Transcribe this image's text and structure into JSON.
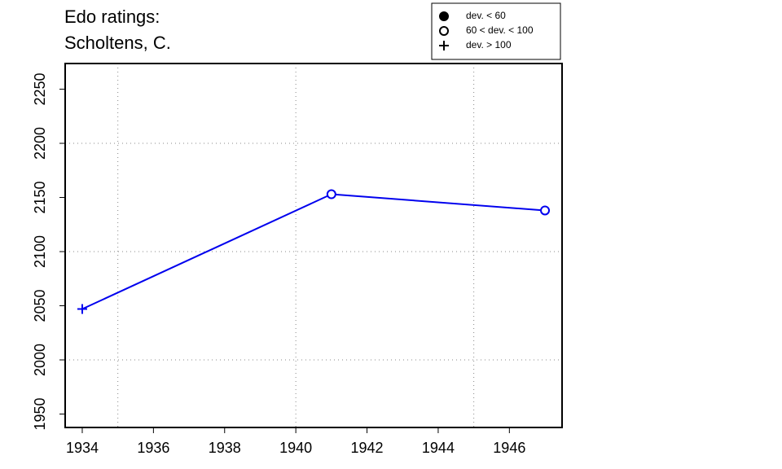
{
  "chart_data": {
    "type": "line",
    "title": [
      "Edo ratings:",
      "Scholtens, C."
    ],
    "x": [
      1934,
      1941,
      1947
    ],
    "series": [
      {
        "color": "#0000ee",
        "values": [
          2047,
          2153,
          2138
        ],
        "markers": [
          "plus",
          "circle",
          "circle"
        ]
      }
    ],
    "xlim": [
      1933.52,
      1947.48
    ],
    "xticks": [
      1934,
      1936,
      1938,
      1940,
      1942,
      1944,
      1946
    ],
    "ylim": [
      1937.6,
      2273.7
    ],
    "yticks": [
      1950,
      2000,
      2050,
      2100,
      2150,
      2200,
      2250
    ],
    "xgrid": [
      1935,
      1940,
      1945
    ],
    "ygrid": [
      2000,
      2100,
      2200
    ],
    "legend": {
      "position": "top-right",
      "entries": [
        {
          "label": "dev. < 60",
          "marker": "filled-circle"
        },
        {
          "label": "60 < dev. < 100",
          "marker": "circle"
        },
        {
          "label": "dev. > 100",
          "marker": "plus"
        }
      ]
    }
  }
}
